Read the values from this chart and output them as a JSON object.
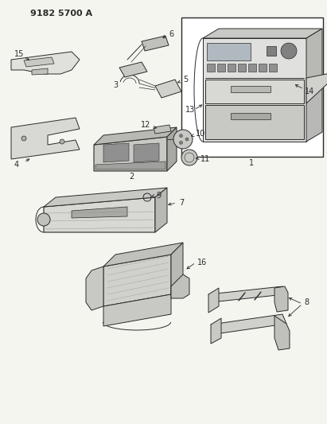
{
  "title": "9182 5700 A",
  "bg_color": "#f5f5f0",
  "line_color": "#2a2a2a",
  "title_fontsize": 8,
  "fig_width": 4.11,
  "fig_height": 5.33,
  "dpi": 100
}
